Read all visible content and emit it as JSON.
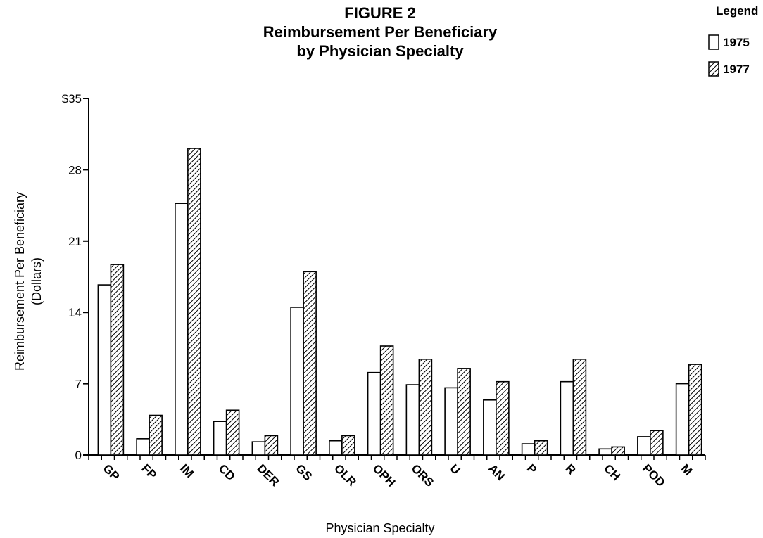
{
  "header": {
    "figure_label": "FIGURE 2",
    "title_line1": "Reimbursement Per Beneficiary",
    "title_line2": "by Physician Specialty"
  },
  "legend": {
    "title": "Legend",
    "position": "top-right"
  },
  "chart_data": {
    "type": "bar",
    "title": "FIGURE 2 Reimbursement Per Beneficiary by Physician Specialty",
    "xlabel": "Physician Specialty",
    "ylabel_line1": "Reimbursement Per Beneficiary",
    "ylabel_line2": "(Dollars)",
    "ylim": [
      0,
      35
    ],
    "yticks": [
      0,
      7,
      14,
      21,
      28,
      35
    ],
    "ytick_labels": [
      "0",
      "7",
      "14",
      "21",
      "28",
      "$35"
    ],
    "grid": false,
    "legend_position": "top-right",
    "categories": [
      "GP",
      "FP",
      "IM",
      "CD",
      "DER",
      "GS",
      "OLR",
      "OPH",
      "ORS",
      "U",
      "AN",
      "P",
      "R",
      "CH",
      "POD",
      "M"
    ],
    "series": [
      {
        "name": "1975",
        "fill": "#ffffff",
        "pattern": "none",
        "values": [
          16.7,
          1.6,
          24.7,
          3.3,
          1.3,
          14.5,
          1.4,
          8.1,
          6.9,
          6.6,
          5.4,
          1.1,
          7.2,
          0.6,
          1.8,
          7.0
        ]
      },
      {
        "name": "1977",
        "fill": "#ffffff",
        "pattern": "diagonal-hatch",
        "values": [
          18.7,
          3.9,
          30.1,
          4.4,
          1.9,
          18.0,
          1.9,
          10.7,
          9.4,
          8.5,
          7.2,
          1.4,
          9.4,
          0.8,
          2.4,
          8.9
        ]
      }
    ]
  }
}
